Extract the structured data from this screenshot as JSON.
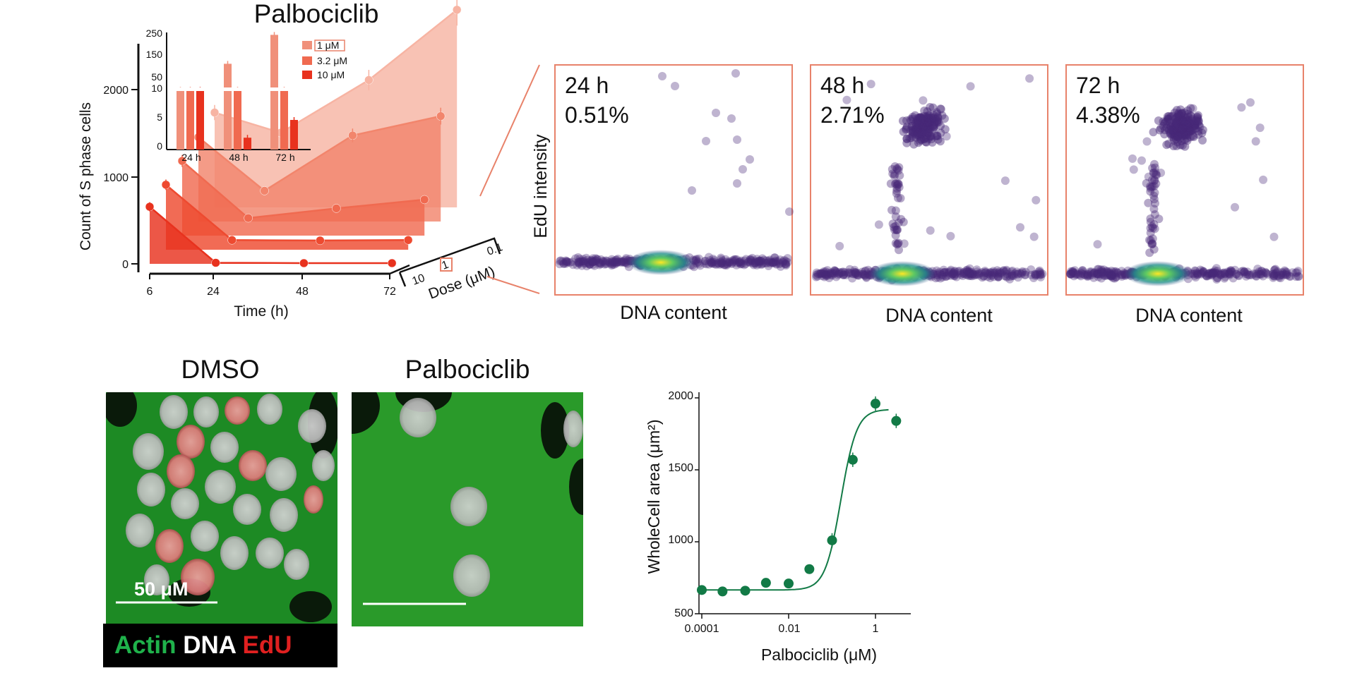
{
  "colors": {
    "red_light": "#f7b4a3",
    "red_mid": "#f0705a",
    "red_dark": "#e8321e",
    "scatter": "#482878",
    "green": "#127a46",
    "frame": "#e8826a"
  },
  "panel_a": {
    "title": "Palbociclib",
    "ylabel": "Count of S phase cells",
    "xlabel": "Time (h)",
    "dose_label": "Dose (μM)",
    "dose_ticks": [
      "10",
      "1",
      "0.1"
    ],
    "x_ticks": [
      "6",
      "24",
      "48",
      "72"
    ],
    "y_ticks": [
      "0",
      "1000",
      "2000"
    ],
    "inset": {
      "y_ticks_upper": [
        "250",
        "150",
        "50",
        "10"
      ],
      "y_ticks_lower": [
        "0",
        "5",
        "10"
      ],
      "groups": [
        "24 h",
        "48 h",
        "72 h"
      ],
      "legend": [
        "1 μM",
        "3.2 μM",
        "10 μM"
      ]
    }
  },
  "panel_b": {
    "ylabel": "EdU intensity",
    "xlabel": "DNA content",
    "plots": [
      {
        "time": "24 h",
        "pct": "0.51%"
      },
      {
        "time": "48 h",
        "pct": "2.71%"
      },
      {
        "time": "72 h",
        "pct": "4.38%"
      }
    ]
  },
  "panel_c": {
    "title_left": "DMSO",
    "title_right": "Palbociclib",
    "scale_label": "50 μM",
    "legend": {
      "actin": "Actin",
      "dna": "DNA",
      "edu": "EdU"
    }
  },
  "panel_d": {
    "ylabel": "WholeCell area (μm²)",
    "xlabel": "Palbociclib (μM)",
    "x_ticks": [
      "0.0001",
      "0.01",
      "1"
    ],
    "y_ticks": [
      "500",
      "1000",
      "1500",
      "2000"
    ]
  },
  "chart_data": [
    {
      "type": "line",
      "title": "Palbociclib",
      "xlabel": "Time (h)",
      "ylabel": "Count of S phase cells",
      "x": [
        6,
        24,
        48,
        72
      ],
      "series": [
        {
          "name": "10",
          "values": [
            650,
            12,
            8,
            8
          ]
        },
        {
          "name": "",
          "values": [
            740,
            110,
            105,
            110
          ]
        },
        {
          "name": "",
          "values": [
            850,
            200,
            310,
            410
          ]
        },
        {
          "name": "1",
          "values": [
            960,
            350,
            980,
            1200
          ]
        },
        {
          "name": "0.1",
          "values": [
            1080,
            850,
            1450,
            2250
          ]
        }
      ],
      "ylim": [
        0,
        2300
      ]
    },
    {
      "type": "bar",
      "categories": [
        "24 h",
        "48 h",
        "72 h"
      ],
      "series": [
        {
          "name": "1 μM",
          "values": [
            12,
            120,
            240
          ]
        },
        {
          "name": "3.2 μM",
          "values": [
            12,
            12,
            12
          ]
        },
        {
          "name": "10 μM",
          "values": [
            12,
            2,
            5
          ]
        }
      ]
    },
    {
      "type": "line",
      "xlabel": "Palbociclib (μM)",
      "ylabel": "WholeCell area (μm²)",
      "x_scale": "log",
      "x": [
        0.0001,
        0.0003,
        0.001,
        0.003,
        0.01,
        0.03,
        0.1,
        0.3,
        1,
        3
      ],
      "series": [
        {
          "name": "",
          "values": [
            665,
            655,
            660,
            715,
            710,
            810,
            1010,
            1570,
            1960,
            1840
          ]
        }
      ],
      "ylim": [
        500,
        2000
      ]
    }
  ]
}
